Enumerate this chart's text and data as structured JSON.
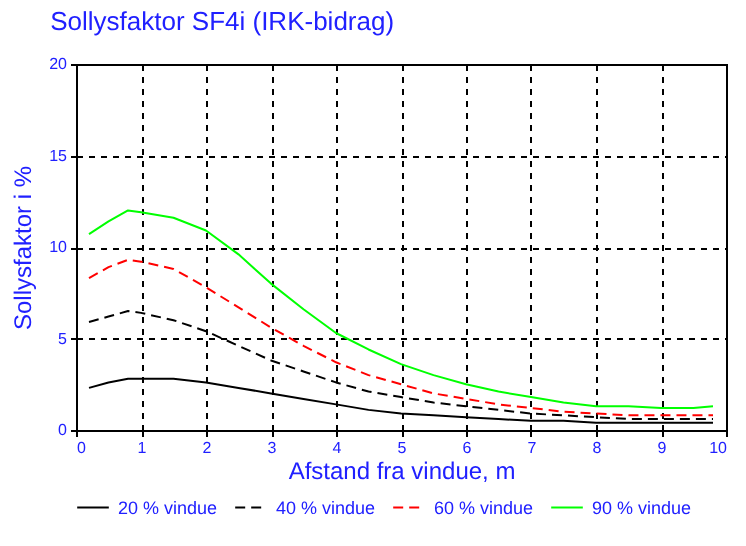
{
  "chart_data": {
    "type": "line",
    "title": "Sollysfaktor SF4i  (IRK-bidrag)",
    "xlabel": "Afstand fra vindue,  m",
    "ylabel": "Sollysfaktor  i  %",
    "x": [
      0.2,
      0.5,
      0.8,
      1,
      1.5,
      2,
      2.5,
      3,
      3.5,
      4,
      4.5,
      5,
      5.5,
      6,
      6.5,
      7,
      7.5,
      8,
      8.5,
      9,
      9.5,
      9.8
    ],
    "series": [
      {
        "name": "20 % vindue",
        "color": "#000000",
        "line_style": "solid",
        "values": [
          2.3,
          2.6,
          2.8,
          2.8,
          2.8,
          2.6,
          2.3,
          2.0,
          1.7,
          1.4,
          1.1,
          0.9,
          0.8,
          0.7,
          0.6,
          0.5,
          0.5,
          0.4,
          0.4,
          0.4,
          0.4,
          0.4
        ]
      },
      {
        "name": "40 % vindue",
        "color": "#000000",
        "line_style": "dashed",
        "values": [
          5.9,
          6.2,
          6.5,
          6.4,
          6.0,
          5.4,
          4.6,
          3.8,
          3.2,
          2.6,
          2.1,
          1.8,
          1.5,
          1.3,
          1.1,
          0.9,
          0.8,
          0.7,
          0.6,
          0.6,
          0.6,
          0.6
        ]
      },
      {
        "name": "60 % vindue",
        "color": "#ff0000",
        "line_style": "dashed",
        "values": [
          8.3,
          8.9,
          9.3,
          9.2,
          8.8,
          7.8,
          6.7,
          5.6,
          4.6,
          3.7,
          3.0,
          2.5,
          2.0,
          1.7,
          1.4,
          1.2,
          1.0,
          0.9,
          0.8,
          0.8,
          0.8,
          0.8
        ]
      },
      {
        "name": "90 % vindue",
        "color": "#00ff00",
        "line_style": "solid",
        "values": [
          10.7,
          11.4,
          12.0,
          11.9,
          11.6,
          10.9,
          9.6,
          8.0,
          6.6,
          5.3,
          4.4,
          3.6,
          3.0,
          2.5,
          2.1,
          1.8,
          1.5,
          1.3,
          1.3,
          1.2,
          1.2,
          1.3
        ]
      }
    ],
    "xlim": [
      0,
      10
    ],
    "xticks": [
      0,
      1,
      2,
      3,
      4,
      5,
      6,
      7,
      8,
      9,
      10
    ],
    "ylim": [
      0,
      20
    ],
    "yticks": [
      0,
      5,
      10,
      15,
      20
    ],
    "grid": true,
    "legend": "bottom",
    "marker": "none"
  }
}
